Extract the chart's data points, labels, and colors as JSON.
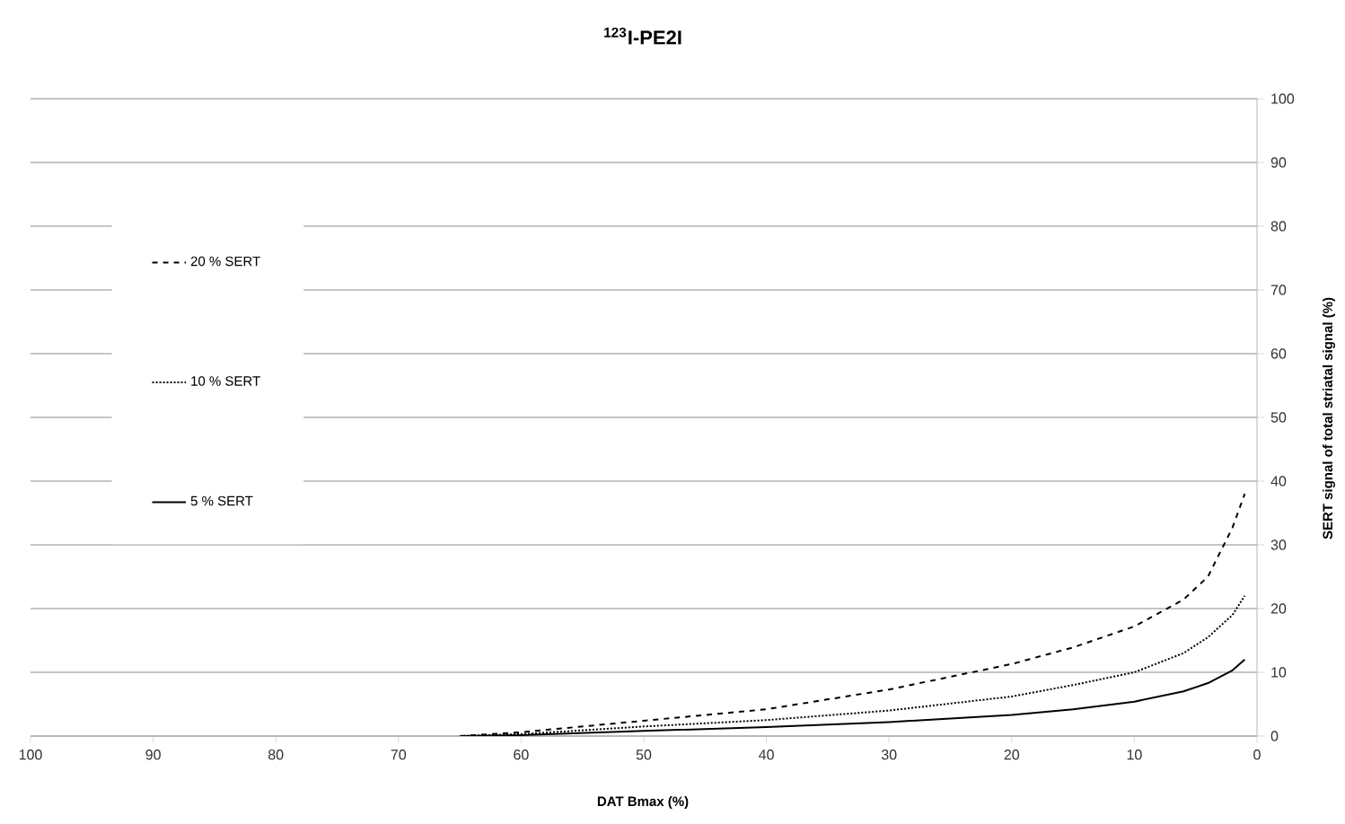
{
  "chart_data": {
    "type": "line",
    "title": "$^{123}$I-PE2I",
    "xlabel": "DAT Bmax (%)",
    "ylabel": "SERT signal of total striatal signal (%)",
    "x": [
      65,
      60,
      50,
      40,
      30,
      20,
      15,
      10,
      6,
      4,
      2,
      1
    ],
    "series": [
      {
        "name": "20 % SERT",
        "color": "#000000",
        "line_style": "dashed",
        "values": [
          0,
          0.6,
          2.4,
          4.2,
          7.3,
          11.3,
          13.9,
          17.2,
          21.4,
          25,
          32.7,
          38
        ]
      },
      {
        "name": "10 % SERT",
        "color": "#000000",
        "line_style": "dotted",
        "values": [
          0,
          0.3,
          1.5,
          2.5,
          4,
          6.2,
          8,
          10,
          13,
          15.5,
          19,
          22
        ]
      },
      {
        "name": "5 % SERT",
        "color": "#000000",
        "line_style": "solid",
        "values": [
          0,
          0.15,
          0.8,
          1.4,
          2.2,
          3.3,
          4.2,
          5.4,
          7,
          8.3,
          10.3,
          12
        ]
      }
    ],
    "xlim": [
      100,
      0
    ],
    "xticks": [
      100,
      90,
      80,
      70,
      60,
      50,
      40,
      30,
      20,
      10,
      0
    ],
    "ylim": [
      0,
      100
    ],
    "yticks": [
      0,
      10,
      20,
      30,
      40,
      50,
      60,
      70,
      80,
      90,
      100
    ],
    "grid": "y",
    "legend": "left",
    "marker": "none"
  }
}
